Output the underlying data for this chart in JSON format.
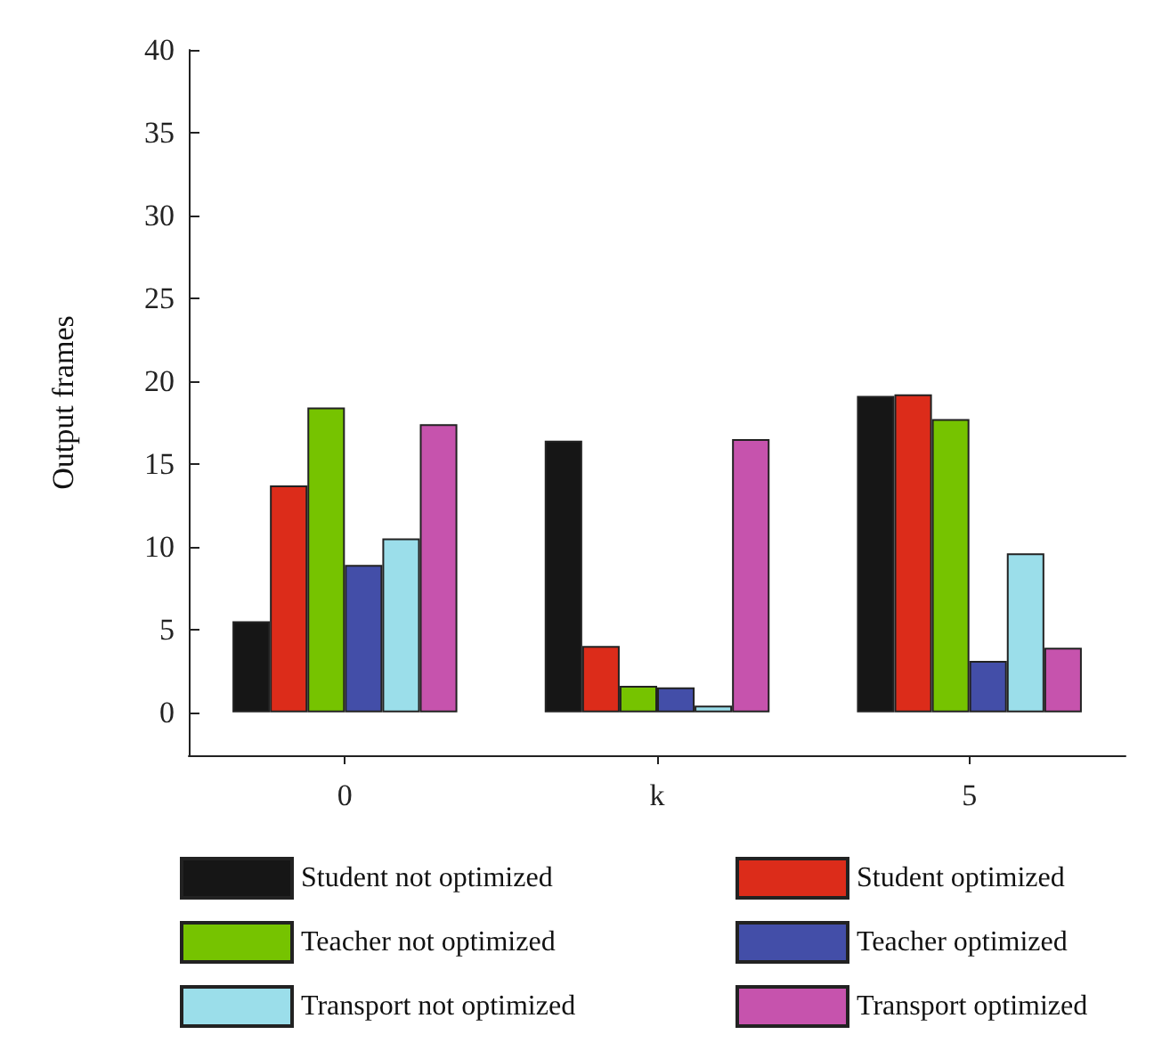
{
  "chart_data": {
    "type": "bar",
    "ylabel": "Output frames",
    "categories": [
      "0",
      "k",
      "5"
    ],
    "ylim": [
      -2.6,
      40
    ],
    "yticks": [
      0,
      5,
      10,
      15,
      20,
      25,
      30,
      35,
      40
    ],
    "grid": false,
    "legend": "bottom",
    "series": [
      {
        "name": "Student not optimized",
        "color": "#161616",
        "values": [
          5.5,
          16.4,
          19.1
        ]
      },
      {
        "name": "Student optimized",
        "color": "#dc2c1a",
        "values": [
          13.7,
          4.0,
          19.2
        ]
      },
      {
        "name": "Teacher not optimized",
        "color": "#76c300",
        "values": [
          18.4,
          1.6,
          17.7
        ]
      },
      {
        "name": "Teacher optimized",
        "color": "#434ea8",
        "values": [
          8.9,
          1.5,
          3.1
        ]
      },
      {
        "name": "Transport not optimized",
        "color": "#9bdeea",
        "values": [
          10.5,
          0.4,
          9.6
        ]
      },
      {
        "name": "Transport optimized",
        "color": "#c653ad",
        "values": [
          17.4,
          16.5,
          3.9
        ]
      }
    ]
  }
}
